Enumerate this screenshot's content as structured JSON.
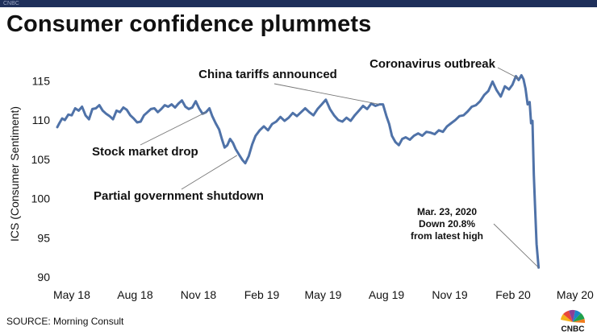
{
  "header": {
    "bar_label": "CNBC",
    "title": "Consumer confidence plummets"
  },
  "footer": {
    "source": "SOURCE: Morning Consult",
    "logo_text": "CNBC"
  },
  "colors": {
    "line": "#4f72a8",
    "annotation_line": "#777777",
    "top_bar": "#1e2f5a",
    "text": "#111111"
  },
  "chart_data": {
    "type": "line",
    "title": "Consumer confidence plummets",
    "xlabel": "",
    "ylabel": "ICS (Consumer Sentiment)",
    "ylim": [
      90,
      117.5
    ],
    "yticks": [
      90,
      95,
      100,
      105,
      110,
      115
    ],
    "xlim": [
      "2018-04-24",
      "2020-05-21"
    ],
    "xticks": [
      {
        "date": "2018-05-15",
        "label": "May 18"
      },
      {
        "date": "2018-08-15",
        "label": "Aug 18"
      },
      {
        "date": "2018-11-15",
        "label": "Nov 18"
      },
      {
        "date": "2019-02-15",
        "label": "Feb 19"
      },
      {
        "date": "2019-05-15",
        "label": "May 19"
      },
      {
        "date": "2019-08-15",
        "label": "Aug 19"
      },
      {
        "date": "2019-11-15",
        "label": "Nov 19"
      },
      {
        "date": "2020-02-15",
        "label": "Feb 20"
      },
      {
        "date": "2020-05-15",
        "label": "May 20"
      }
    ],
    "grid": "none",
    "series": [
      {
        "points": [
          [
            "2018-04-24",
            109.1
          ],
          [
            "2018-04-27",
            109.6
          ],
          [
            "2018-05-01",
            110.2
          ],
          [
            "2018-05-05",
            110.0
          ],
          [
            "2018-05-10",
            110.7
          ],
          [
            "2018-05-15",
            110.6
          ],
          [
            "2018-05-20",
            111.5
          ],
          [
            "2018-05-25",
            111.2
          ],
          [
            "2018-05-30",
            111.7
          ],
          [
            "2018-06-04",
            110.6
          ],
          [
            "2018-06-09",
            110.1
          ],
          [
            "2018-06-14",
            111.4
          ],
          [
            "2018-06-19",
            111.5
          ],
          [
            "2018-06-24",
            111.9
          ],
          [
            "2018-06-29",
            111.2
          ],
          [
            "2018-07-04",
            110.8
          ],
          [
            "2018-07-09",
            110.5
          ],
          [
            "2018-07-14",
            110.1
          ],
          [
            "2018-07-19",
            111.2
          ],
          [
            "2018-07-24",
            111.0
          ],
          [
            "2018-07-29",
            111.6
          ],
          [
            "2018-08-03",
            111.3
          ],
          [
            "2018-08-08",
            110.6
          ],
          [
            "2018-08-13",
            110.2
          ],
          [
            "2018-08-18",
            109.7
          ],
          [
            "2018-08-23",
            109.8
          ],
          [
            "2018-08-28",
            110.6
          ],
          [
            "2018-09-02",
            111.0
          ],
          [
            "2018-09-07",
            111.4
          ],
          [
            "2018-09-12",
            111.5
          ],
          [
            "2018-09-17",
            111.0
          ],
          [
            "2018-09-22",
            111.4
          ],
          [
            "2018-09-27",
            111.9
          ],
          [
            "2018-10-02",
            111.7
          ],
          [
            "2018-10-07",
            112.0
          ],
          [
            "2018-10-12",
            111.6
          ],
          [
            "2018-10-17",
            112.1
          ],
          [
            "2018-10-22",
            112.5
          ],
          [
            "2018-10-27",
            111.7
          ],
          [
            "2018-11-01",
            111.4
          ],
          [
            "2018-11-06",
            111.6
          ],
          [
            "2018-11-11",
            112.4
          ],
          [
            "2018-11-16",
            111.5
          ],
          [
            "2018-11-21",
            110.8
          ],
          [
            "2018-11-26",
            111.0
          ],
          [
            "2018-12-01",
            111.5
          ],
          [
            "2018-12-05",
            110.5
          ],
          [
            "2018-12-10",
            109.6
          ],
          [
            "2018-12-15",
            108.8
          ],
          [
            "2018-12-19",
            107.6
          ],
          [
            "2018-12-23",
            106.5
          ],
          [
            "2018-12-27",
            106.8
          ],
          [
            "2018-12-31",
            107.6
          ],
          [
            "2019-01-04",
            107.1
          ],
          [
            "2019-01-08",
            106.3
          ],
          [
            "2019-01-13",
            105.6
          ],
          [
            "2019-01-18",
            104.9
          ],
          [
            "2019-01-22",
            104.5
          ],
          [
            "2019-01-27",
            105.4
          ],
          [
            "2019-02-01",
            106.9
          ],
          [
            "2019-02-06",
            108.0
          ],
          [
            "2019-02-12",
            108.7
          ],
          [
            "2019-02-18",
            109.2
          ],
          [
            "2019-02-24",
            108.7
          ],
          [
            "2019-03-02",
            109.5
          ],
          [
            "2019-03-08",
            109.8
          ],
          [
            "2019-03-14",
            110.4
          ],
          [
            "2019-03-20",
            109.9
          ],
          [
            "2019-03-26",
            110.3
          ],
          [
            "2019-04-01",
            110.9
          ],
          [
            "2019-04-07",
            110.5
          ],
          [
            "2019-04-13",
            111.0
          ],
          [
            "2019-04-19",
            111.5
          ],
          [
            "2019-04-25",
            111.0
          ],
          [
            "2019-05-01",
            110.6
          ],
          [
            "2019-05-07",
            111.4
          ],
          [
            "2019-05-13",
            112.0
          ],
          [
            "2019-05-19",
            112.6
          ],
          [
            "2019-05-25",
            111.4
          ],
          [
            "2019-05-31",
            110.6
          ],
          [
            "2019-06-06",
            110.0
          ],
          [
            "2019-06-12",
            109.8
          ],
          [
            "2019-06-18",
            110.3
          ],
          [
            "2019-06-24",
            109.9
          ],
          [
            "2019-06-30",
            110.6
          ],
          [
            "2019-07-06",
            111.2
          ],
          [
            "2019-07-12",
            111.8
          ],
          [
            "2019-07-18",
            111.4
          ],
          [
            "2019-07-24",
            112.1
          ],
          [
            "2019-07-30",
            111.8
          ],
          [
            "2019-08-05",
            112.0
          ],
          [
            "2019-08-10",
            112.0
          ],
          [
            "2019-08-15",
            110.5
          ],
          [
            "2019-08-19",
            109.5
          ],
          [
            "2019-08-23",
            108.0
          ],
          [
            "2019-08-28",
            107.2
          ],
          [
            "2019-09-02",
            106.8
          ],
          [
            "2019-09-07",
            107.6
          ],
          [
            "2019-09-12",
            107.8
          ],
          [
            "2019-09-18",
            107.5
          ],
          [
            "2019-09-24",
            108.0
          ],
          [
            "2019-09-30",
            108.3
          ],
          [
            "2019-10-06",
            108.0
          ],
          [
            "2019-10-12",
            108.5
          ],
          [
            "2019-10-18",
            108.4
          ],
          [
            "2019-10-24",
            108.2
          ],
          [
            "2019-10-30",
            108.7
          ],
          [
            "2019-11-05",
            108.5
          ],
          [
            "2019-11-11",
            109.2
          ],
          [
            "2019-11-17",
            109.6
          ],
          [
            "2019-11-23",
            110.0
          ],
          [
            "2019-11-29",
            110.5
          ],
          [
            "2019-12-05",
            110.6
          ],
          [
            "2019-12-11",
            111.1
          ],
          [
            "2019-12-17",
            111.7
          ],
          [
            "2019-12-23",
            111.9
          ],
          [
            "2019-12-29",
            112.4
          ],
          [
            "2020-01-04",
            113.2
          ],
          [
            "2020-01-10",
            113.7
          ],
          [
            "2020-01-16",
            114.9
          ],
          [
            "2020-01-22",
            113.8
          ],
          [
            "2020-01-28",
            113.0
          ],
          [
            "2020-02-03",
            114.3
          ],
          [
            "2020-02-09",
            113.9
          ],
          [
            "2020-02-14",
            114.5
          ],
          [
            "2020-02-19",
            115.6
          ],
          [
            "2020-02-23",
            115.1
          ],
          [
            "2020-02-27",
            115.7
          ],
          [
            "2020-03-01",
            115.2
          ],
          [
            "2020-03-04",
            114.0
          ],
          [
            "2020-03-07",
            112.0
          ],
          [
            "2020-03-10",
            112.3
          ],
          [
            "2020-03-12",
            109.6
          ],
          [
            "2020-03-14",
            109.9
          ],
          [
            "2020-03-16",
            103.0
          ],
          [
            "2020-03-18",
            98.5
          ],
          [
            "2020-03-20",
            94.2
          ],
          [
            "2020-03-23",
            91.2
          ]
        ]
      }
    ],
    "annotations": [
      {
        "text": "China tariffs announced",
        "target": [
          "2019-08-05",
          112.0
        ]
      },
      {
        "text": "Coronavirus outbreak",
        "target": [
          "2020-02-23",
          115.3
        ]
      },
      {
        "text": "Stock market drop",
        "target": [
          "2018-11-26",
          111.0
        ]
      },
      {
        "text": "Partial government shutdown",
        "target": [
          "2019-01-10",
          105.5
        ]
      },
      {
        "lines": [
          "Mar. 23, 2020",
          "Down 20.8%",
          "from latest high"
        ],
        "target": [
          "2020-03-23",
          91.2
        ]
      }
    ]
  }
}
